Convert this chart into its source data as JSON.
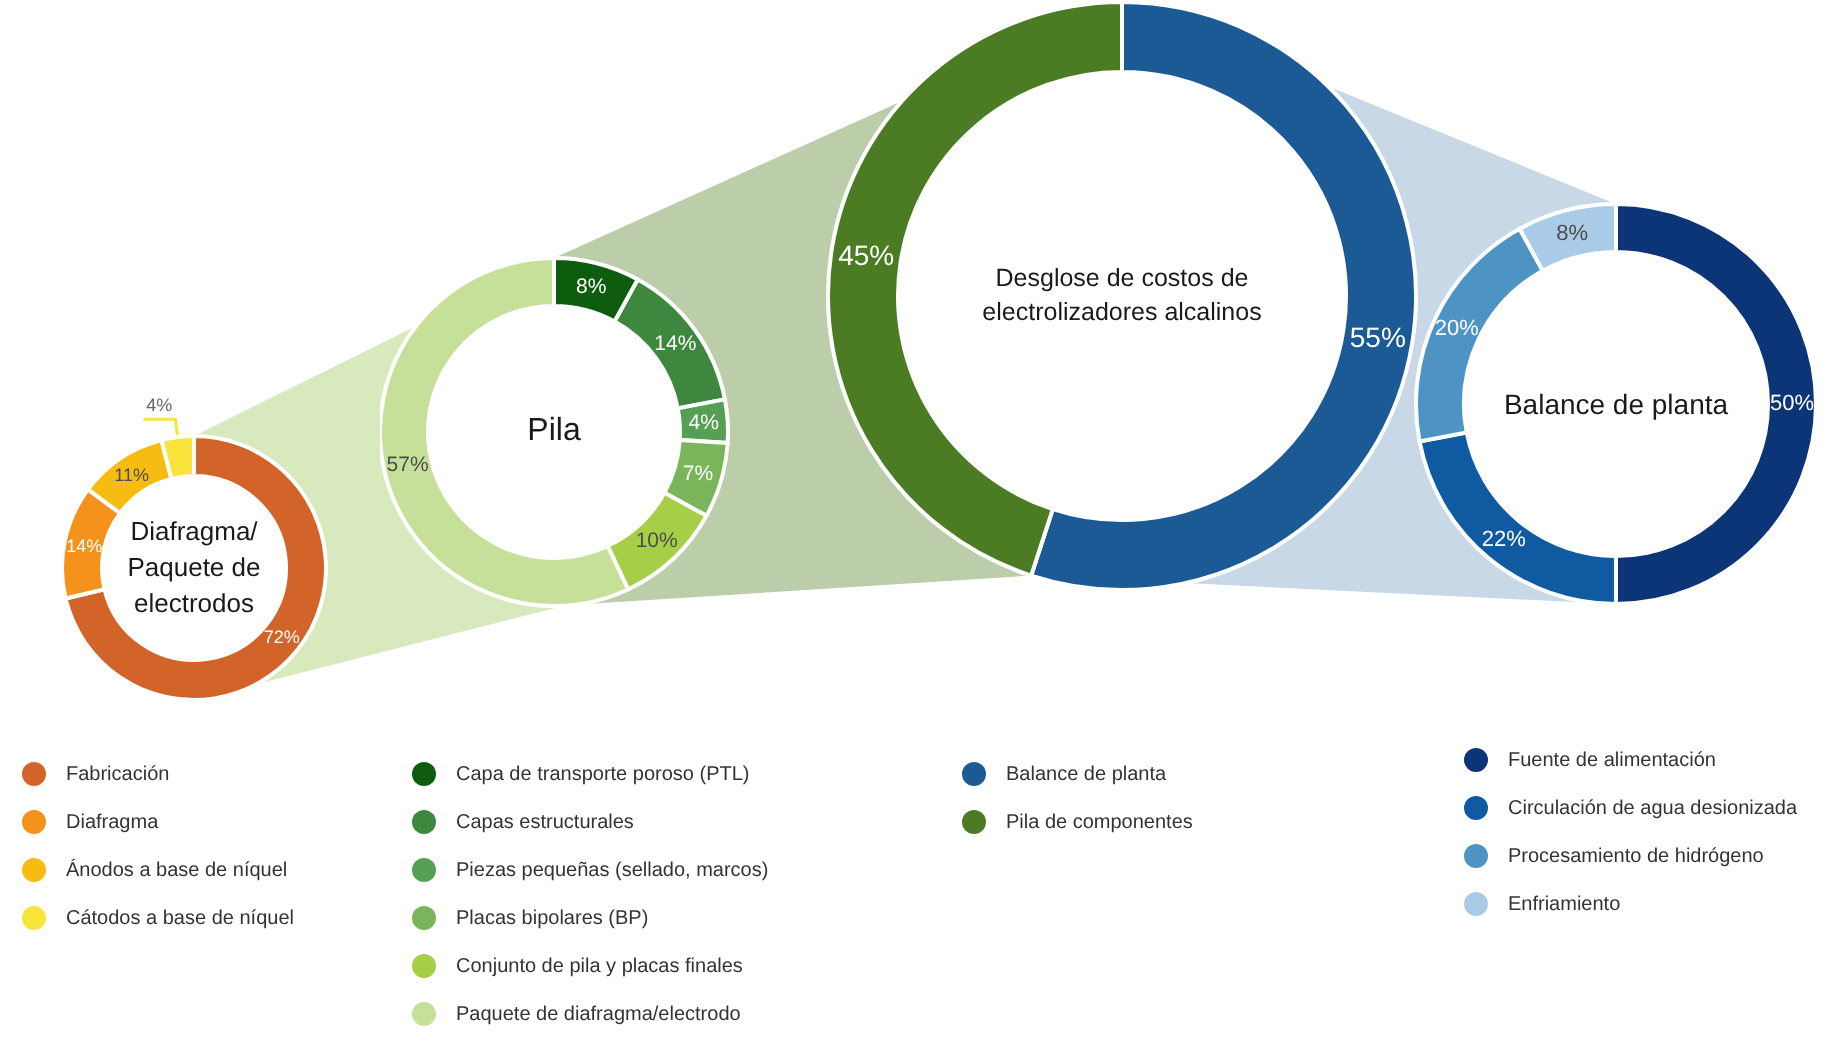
{
  "chart_data": [
    {
      "type": "donut",
      "title": "Diafragma/ Paquete de electrodos",
      "categories": [
        "Fabricación",
        "Diafragma",
        "Ánodos a base de níquel",
        "Cátodos a base de níquel"
      ],
      "values": [
        72,
        14,
        11,
        4
      ],
      "colors": [
        "#d2642a",
        "#f5921b",
        "#f7bc12",
        "#f9e43c"
      ],
      "value_labels": [
        "72%",
        "14%",
        "11%",
        "4%"
      ],
      "legend": "bottom"
    },
    {
      "type": "donut",
      "title": "Pila",
      "categories": [
        "Capa de transporte poroso (PTL)",
        "Capas estructurales",
        "Piezas pequeñas (sellado, marcos)",
        "Placas bipolares (BP)",
        "Conjunto de pila y placas finales",
        "Paquete de diafragma/electrodo"
      ],
      "values": [
        8,
        14,
        4,
        7,
        10,
        57
      ],
      "colors": [
        "#0e5c0e",
        "#3e873e",
        "#55a055",
        "#7ab55c",
        "#a6ce47",
        "#c6e09a"
      ],
      "value_labels": [
        "8%",
        "14%",
        "4%",
        "7%",
        "10%",
        "57%"
      ],
      "legend": "bottom"
    },
    {
      "type": "donut",
      "title": "Desglose de costos de electrolizadores alcalinos",
      "categories": [
        "Balance de planta",
        "Pila de componentes"
      ],
      "values": [
        55,
        45
      ],
      "colors": [
        "#1b5a94",
        "#4b7b23"
      ],
      "value_labels": [
        "55%",
        "45%"
      ],
      "legend": "bottom"
    },
    {
      "type": "donut",
      "title": "Balance de planta",
      "categories": [
        "Fuente de alimentación",
        "Circulación de agua desionizada",
        "Procesamiento de hidrógeno",
        "Enfriamiento"
      ],
      "values": [
        50,
        22,
        20,
        8
      ],
      "colors": [
        "#0c3578",
        "#0f5aa0",
        "#4d94c4",
        "#aacbe8"
      ],
      "value_labels": [
        "50%",
        "22%",
        "20%",
        "8%"
      ],
      "legend": "bottom"
    }
  ]
}
